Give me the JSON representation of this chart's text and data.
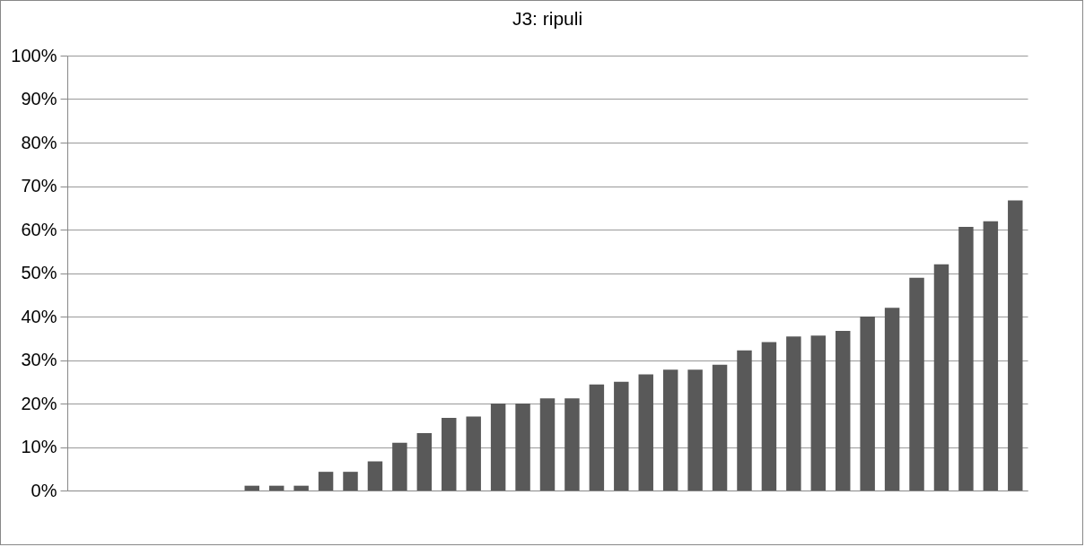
{
  "chart_data": {
    "type": "bar",
    "title": "J3: ripuli",
    "categories": [
      null,
      null,
      null,
      null,
      null,
      null,
      null,
      null,
      null,
      null,
      null,
      null,
      null,
      null,
      null,
      null,
      null,
      null,
      null,
      null,
      null,
      null,
      null,
      null,
      null,
      null,
      null,
      null,
      null,
      null,
      null,
      null,
      null,
      null,
      null,
      null,
      null,
      null,
      null
    ],
    "values": [
      0,
      0,
      0,
      0,
      0,
      0,
      0,
      1.1,
      1.1,
      1.1,
      4.3,
      4.3,
      6.7,
      11,
      13.2,
      16.7,
      17,
      20,
      20,
      21.2,
      21.2,
      24.4,
      25,
      26.7,
      27.8,
      27.8,
      28.9,
      32.2,
      34.1,
      35.4,
      35.6,
      36.7,
      40,
      42,
      48.9,
      52,
      60.6,
      61.9,
      66.7
    ],
    "color": "#595959",
    "ylim": [
      0,
      100
    ],
    "yticks": [
      {
        "value": 0,
        "label": "0%"
      },
      {
        "value": 10,
        "label": "10%"
      },
      {
        "value": 20,
        "label": "20%"
      },
      {
        "value": 30,
        "label": "30%"
      },
      {
        "value": 40,
        "label": "40%"
      },
      {
        "value": 50,
        "label": "50%"
      },
      {
        "value": 60,
        "label": "60%"
      },
      {
        "value": 70,
        "label": "70%"
      },
      {
        "value": 80,
        "label": "80%"
      },
      {
        "value": 90,
        "label": "90%"
      },
      {
        "value": 100,
        "label": "100%"
      }
    ],
    "grid": "y"
  }
}
